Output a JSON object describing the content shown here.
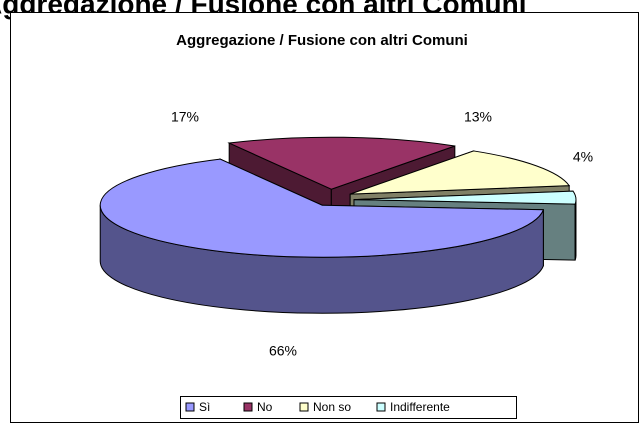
{
  "page_heading": "Aggregazione / Fusione con altri Comuni",
  "chart_data": {
    "type": "pie3d",
    "title": "Aggregazione / Fusione con altri Comuni",
    "categories": [
      "Sì",
      "No",
      "Non so",
      "Indifferente"
    ],
    "values": [
      66,
      17,
      13,
      4
    ],
    "value_labels": [
      "66%",
      "17%",
      "13%",
      "4%"
    ],
    "colors": [
      "#9999ff",
      "#993366",
      "#ffffcc",
      "#ccffff"
    ],
    "legend": "bottom"
  }
}
